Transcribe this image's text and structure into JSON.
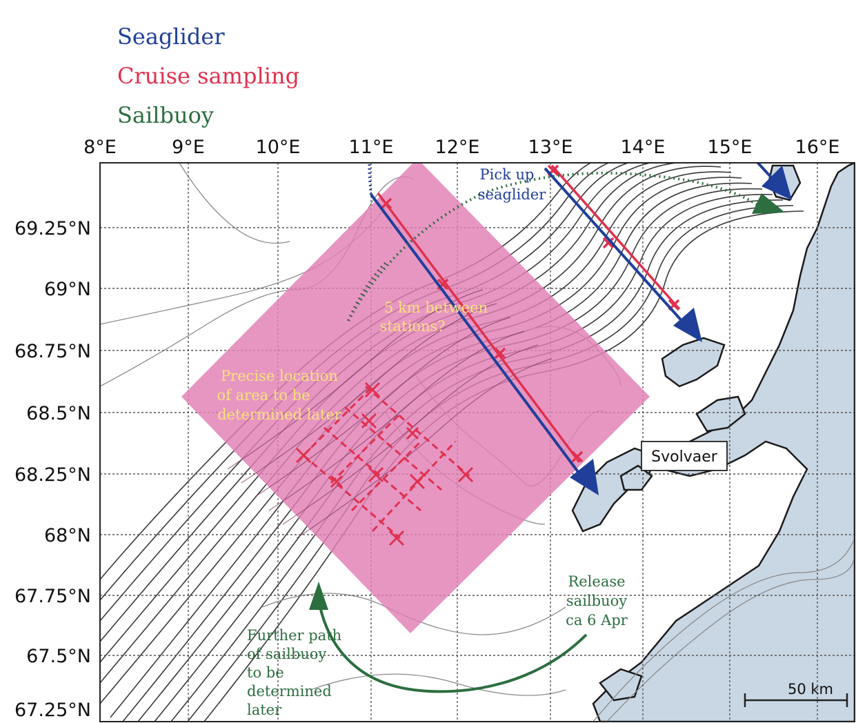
{
  "legend": [
    {
      "label": "Seaglider",
      "color": "#1f3f9a"
    },
    {
      "label": "Cruise sampling",
      "color": "#e0314f"
    },
    {
      "label": "Sailbuoy",
      "color": "#2c6e3f"
    }
  ],
  "lon_labels": [
    "8°E",
    "9°E",
    "10°E",
    "11°E",
    "12°E",
    "13°E",
    "14°E",
    "15°E",
    "16°E"
  ],
  "lat_labels": [
    "69.25°N",
    "69°N",
    "68.75°N",
    "68.5°N",
    "68.25°N",
    "68°N",
    "67.75°N",
    "67.5°N",
    "67.25°N"
  ],
  "annotations": {
    "pickup_line1": "Pick up",
    "pickup_line2": "seaglider",
    "stations_line1": "5 km between",
    "stations_line2": "stations?",
    "precise_line1": "Precise location",
    "precise_line2": "of area to be",
    "precise_line3": "determined later",
    "release_line1": "Release",
    "release_line2": "sailbuoy",
    "release_line3": "ca 6 Apr",
    "further_line1": "Further path",
    "further_line2": "of sailbuoy",
    "further_line3": "to be",
    "further_line4": "determined",
    "further_line5": "later"
  },
  "place_label": "Svolvaer",
  "scale_label": "50 km",
  "colors": {
    "seaglider": "#1f3f9a",
    "cruise": "#e0314f",
    "sailbuoy": "#2c6e3f",
    "area": "#e27fb4",
    "land": "#c9d6e3",
    "annotation": "#f6e27a"
  }
}
